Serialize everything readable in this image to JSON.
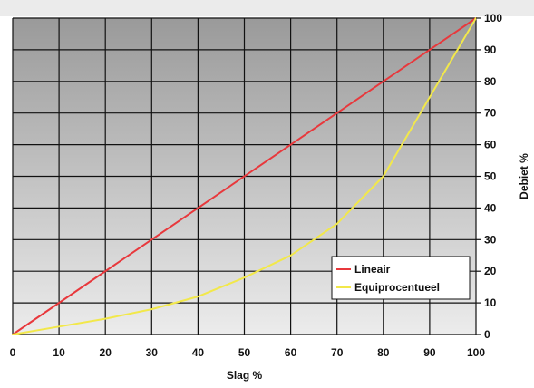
{
  "chart_data": {
    "type": "line",
    "xlabel": "Slag %",
    "ylabel": "Debiet %",
    "xlim": [
      0,
      100
    ],
    "ylim": [
      0,
      100
    ],
    "x_ticks": [
      0,
      10,
      20,
      30,
      40,
      50,
      60,
      70,
      80,
      90,
      100
    ],
    "y_ticks": [
      0,
      10,
      20,
      30,
      40,
      50,
      60,
      70,
      80,
      90,
      100
    ],
    "y_axis_side": "right",
    "grid": true,
    "legend_position": "bottom-right",
    "series": [
      {
        "name": "Lineair",
        "color": "#e8383c",
        "x": [
          0,
          100
        ],
        "y": [
          0,
          100
        ]
      },
      {
        "name": "Equiprocentueel",
        "color": "#f2e84a",
        "x": [
          0,
          10,
          20,
          30,
          35,
          40,
          50,
          60,
          70,
          80,
          90,
          100
        ],
        "y": [
          0,
          2.5,
          5,
          8,
          10,
          12,
          18,
          25,
          35,
          50,
          75,
          100
        ]
      }
    ]
  }
}
